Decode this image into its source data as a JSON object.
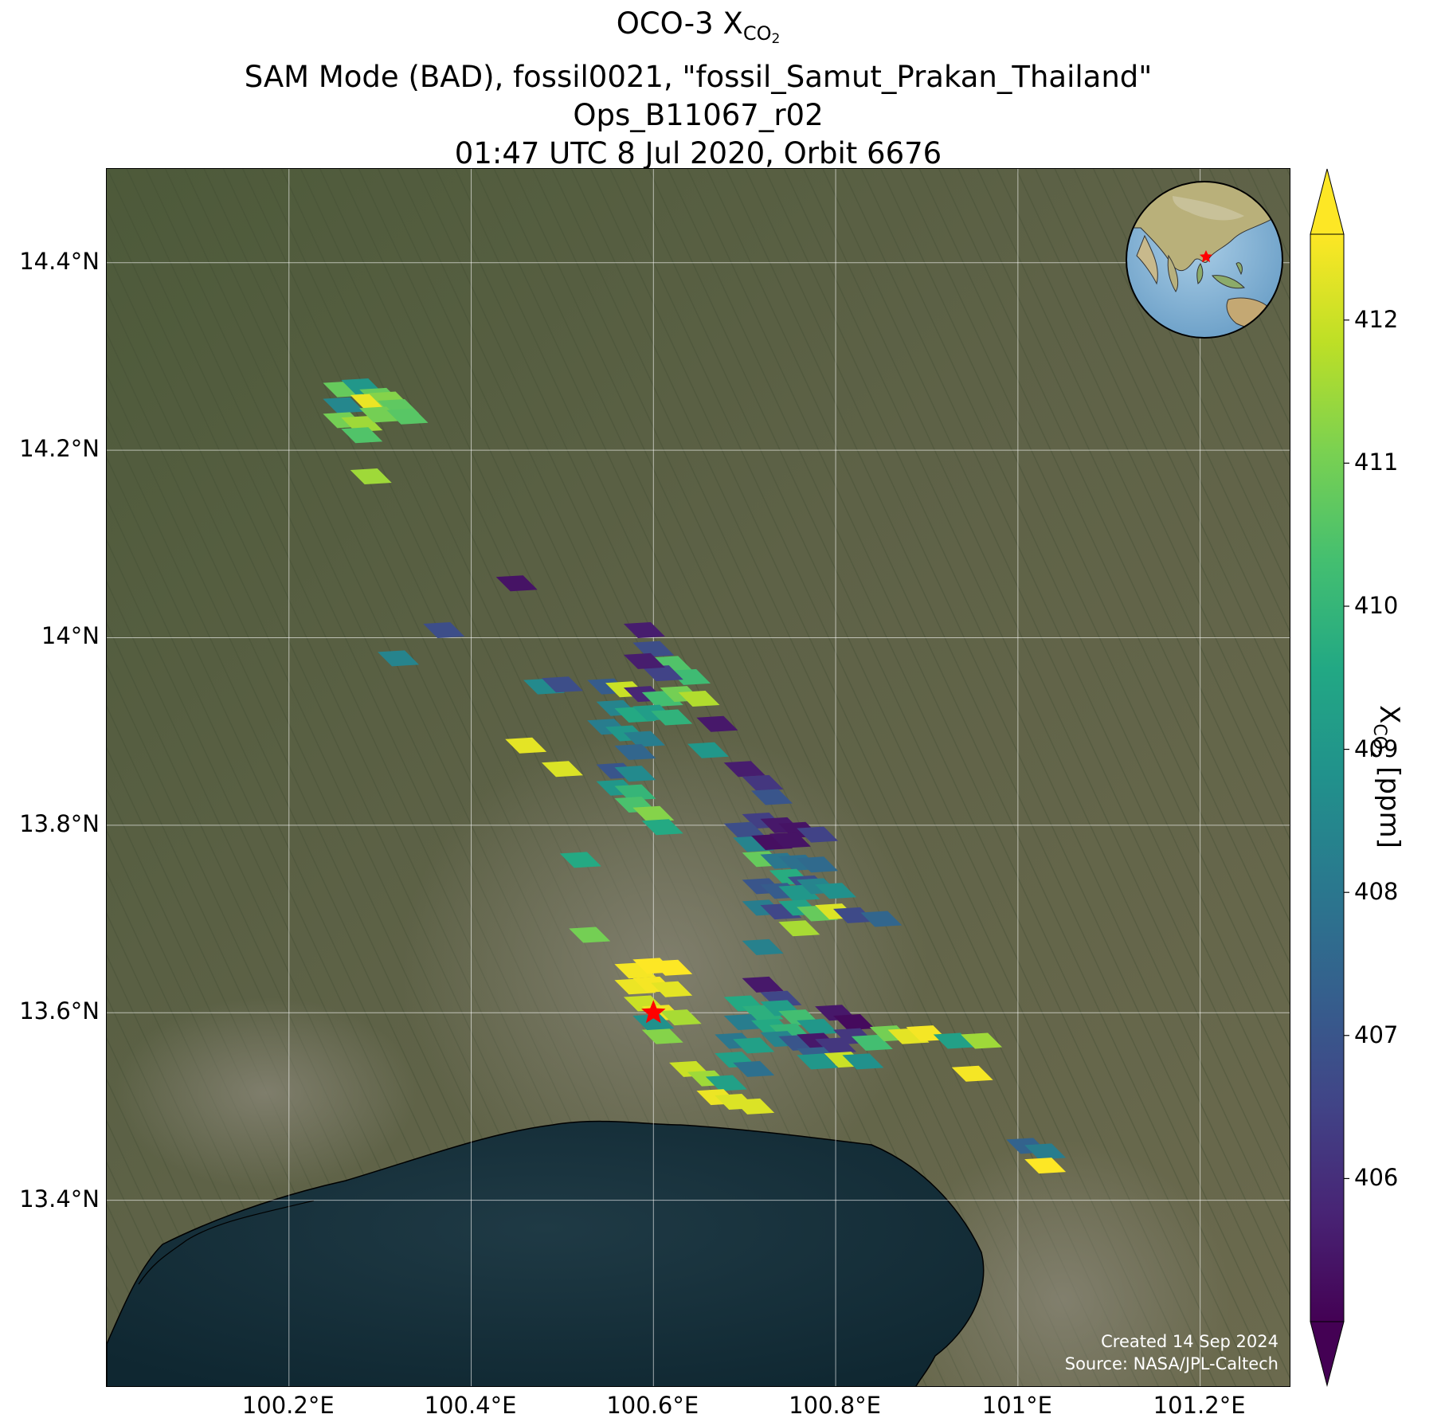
{
  "title": {
    "line1_prefix": "OCO-3 X",
    "line1_sub": "CO",
    "line1_sub2": "2",
    "line2": "SAM Mode (BAD), fossil0021, \"fossil_Samut_Prakan_Thailand\"",
    "line3": "Ops_B11067_r02",
    "line4": "01:47 UTC 8 Jul 2020, Orbit 6676"
  },
  "map": {
    "lon_range": [
      100.0,
      101.3
    ],
    "lat_range": [
      13.2,
      14.5
    ],
    "lat_ticks": [
      "14.4°N",
      "14.2°N",
      "14°N",
      "13.8°N",
      "13.6°N",
      "13.4°N"
    ],
    "lon_ticks": [
      "100.2°E",
      "100.4°E",
      "100.6°E",
      "100.8°E",
      "101°E",
      "101.2°E"
    ],
    "grid": true,
    "basemap": "satellite imagery",
    "target_marker": {
      "lon": 100.6,
      "lat": 13.6,
      "color": "#ff0000",
      "shape": "star"
    },
    "credit_line1": "Created 14 Sep 2024",
    "credit_line2": "Source: NASA/JPL-Caltech",
    "inset": "globe-with-star"
  },
  "colorbar": {
    "label_prefix": "X",
    "label_sub": "CO",
    "label_sub2": "2",
    "label_suffix": " [ppm]",
    "colormap": "viridis",
    "vmin": 405.0,
    "vmax": 412.6,
    "ticks": [
      "406",
      "407",
      "408",
      "409",
      "410",
      "411",
      "412"
    ],
    "extend": "both"
  },
  "chart_data": {
    "type": "scatter",
    "title": "OCO-3 XCO2",
    "xlabel": "",
    "ylabel": "",
    "xlim": [
      100.0,
      101.3
    ],
    "ylim": [
      13.2,
      14.5
    ],
    "value_label": "XCO2 [ppm]",
    "soundings": [
      [
        100.26,
        14.265,
        410.8
      ],
      [
        100.28,
        14.268,
        409.0
      ],
      [
        100.3,
        14.258,
        410.8
      ],
      [
        100.26,
        14.248,
        408.5
      ],
      [
        100.29,
        14.252,
        412.4
      ],
      [
        100.31,
        14.254,
        411.2
      ],
      [
        100.32,
        14.246,
        410.7
      ],
      [
        100.26,
        14.232,
        411.0
      ],
      [
        100.28,
        14.228,
        411.5
      ],
      [
        100.3,
        14.238,
        411.0
      ],
      [
        100.33,
        14.236,
        410.6
      ],
      [
        100.28,
        14.216,
        410.5
      ],
      [
        100.29,
        14.172,
        411.5
      ],
      [
        100.45,
        14.058,
        405.4
      ],
      [
        100.37,
        14.008,
        406.8
      ],
      [
        100.32,
        13.978,
        408.4
      ],
      [
        100.59,
        14.008,
        405.6
      ],
      [
        100.6,
        13.988,
        406.8
      ],
      [
        100.62,
        13.972,
        410.5
      ],
      [
        100.64,
        13.958,
        410.2
      ],
      [
        100.61,
        13.962,
        406.5
      ],
      [
        100.59,
        13.975,
        405.6
      ],
      [
        100.48,
        13.948,
        408.6
      ],
      [
        100.5,
        13.95,
        406.8
      ],
      [
        100.55,
        13.948,
        407.2
      ],
      [
        100.57,
        13.945,
        412.0
      ],
      [
        100.59,
        13.94,
        405.8
      ],
      [
        100.61,
        13.935,
        410.3
      ],
      [
        100.63,
        13.94,
        411.0
      ],
      [
        100.65,
        13.935,
        411.7
      ],
      [
        100.56,
        13.925,
        408.4
      ],
      [
        100.58,
        13.918,
        409.6
      ],
      [
        100.6,
        13.92,
        409.2
      ],
      [
        100.62,
        13.915,
        409.9
      ],
      [
        100.55,
        13.905,
        408.2
      ],
      [
        100.57,
        13.898,
        409.0
      ],
      [
        100.59,
        13.892,
        408.2
      ],
      [
        100.67,
        13.908,
        405.5
      ],
      [
        100.58,
        13.878,
        407.5
      ],
      [
        100.66,
        13.88,
        409.0
      ],
      [
        100.46,
        13.885,
        412.3
      ],
      [
        100.5,
        13.86,
        412.2
      ],
      [
        100.56,
        13.858,
        407.0
      ],
      [
        100.58,
        13.855,
        408.6
      ],
      [
        100.56,
        13.84,
        409.0
      ],
      [
        100.58,
        13.835,
        410.0
      ],
      [
        100.58,
        13.822,
        410.4
      ],
      [
        100.6,
        13.812,
        411.2
      ],
      [
        100.61,
        13.798,
        409.6
      ],
      [
        100.7,
        13.86,
        405.6
      ],
      [
        100.72,
        13.845,
        406.2
      ],
      [
        100.73,
        13.83,
        407.0
      ],
      [
        100.72,
        13.805,
        406.4
      ],
      [
        100.74,
        13.8,
        405.5
      ],
      [
        100.76,
        13.795,
        405.4
      ],
      [
        100.78,
        13.79,
        406.5
      ],
      [
        100.7,
        13.795,
        406.8
      ],
      [
        100.71,
        13.78,
        408.4
      ],
      [
        100.73,
        13.782,
        405.3
      ],
      [
        100.75,
        13.784,
        405.4
      ],
      [
        100.72,
        13.764,
        410.8
      ],
      [
        100.74,
        13.762,
        408.0
      ],
      [
        100.76,
        13.76,
        407.8
      ],
      [
        100.78,
        13.758,
        407.6
      ],
      [
        100.75,
        13.745,
        409.7
      ],
      [
        100.77,
        13.738,
        406.8
      ],
      [
        100.72,
        13.735,
        407.0
      ],
      [
        100.74,
        13.73,
        407.2
      ],
      [
        100.76,
        13.728,
        409.0
      ],
      [
        100.78,
        13.735,
        408.4
      ],
      [
        100.8,
        13.73,
        408.8
      ],
      [
        100.72,
        13.712,
        408.2
      ],
      [
        100.74,
        13.708,
        406.6
      ],
      [
        100.76,
        13.712,
        409.3
      ],
      [
        100.78,
        13.706,
        410.8
      ],
      [
        100.8,
        13.708,
        412.2
      ],
      [
        100.82,
        13.704,
        406.7
      ],
      [
        100.85,
        13.7,
        407.5
      ],
      [
        100.76,
        13.69,
        411.6
      ],
      [
        100.72,
        13.67,
        408.3
      ],
      [
        100.52,
        13.763,
        409.6
      ],
      [
        100.53,
        13.683,
        411.0
      ],
      [
        100.58,
        13.645,
        412.5
      ],
      [
        100.6,
        13.65,
        412.6
      ],
      [
        100.62,
        13.648,
        412.6
      ],
      [
        100.58,
        13.628,
        412.4
      ],
      [
        100.6,
        13.63,
        412.5
      ],
      [
        100.62,
        13.625,
        412.3
      ],
      [
        100.59,
        13.61,
        412.0
      ],
      [
        100.61,
        13.6,
        412.4
      ],
      [
        100.63,
        13.595,
        411.6
      ],
      [
        100.61,
        13.575,
        411.2
      ],
      [
        100.6,
        13.59,
        408.8
      ],
      [
        100.72,
        13.63,
        405.5
      ],
      [
        100.74,
        13.615,
        406.6
      ],
      [
        100.7,
        13.61,
        409.6
      ],
      [
        100.72,
        13.6,
        409.8
      ],
      [
        100.74,
        13.605,
        409.2
      ],
      [
        100.76,
        13.595,
        410.3
      ],
      [
        100.7,
        13.59,
        408.2
      ],
      [
        100.73,
        13.585,
        409.6
      ],
      [
        100.75,
        13.58,
        410.0
      ],
      [
        100.78,
        13.585,
        409.0
      ],
      [
        100.69,
        13.57,
        408.0
      ],
      [
        100.71,
        13.565,
        409.3
      ],
      [
        100.74,
        13.572,
        408.4
      ],
      [
        100.76,
        13.568,
        407.0
      ],
      [
        100.78,
        13.57,
        405.5
      ],
      [
        100.8,
        13.565,
        406.2
      ],
      [
        100.78,
        13.555,
        407.3
      ],
      [
        100.69,
        13.55,
        409.3
      ],
      [
        100.71,
        13.54,
        407.8
      ],
      [
        100.8,
        13.6,
        405.5
      ],
      [
        100.82,
        13.59,
        405.2
      ],
      [
        100.82,
        13.575,
        406.2
      ],
      [
        100.84,
        13.568,
        410.3
      ],
      [
        100.86,
        13.578,
        411.0
      ],
      [
        100.88,
        13.575,
        412.3
      ],
      [
        100.9,
        13.578,
        412.5
      ],
      [
        100.93,
        13.57,
        409.3
      ],
      [
        100.96,
        13.57,
        411.5
      ],
      [
        100.81,
        13.55,
        412.0
      ],
      [
        100.83,
        13.548,
        408.8
      ],
      [
        100.78,
        13.548,
        409.0
      ],
      [
        100.64,
        13.54,
        412.0
      ],
      [
        100.66,
        13.53,
        411.5
      ],
      [
        100.68,
        13.525,
        409.3
      ],
      [
        100.67,
        13.51,
        412.4
      ],
      [
        100.69,
        13.505,
        412.2
      ],
      [
        100.71,
        13.5,
        412.2
      ],
      [
        100.95,
        13.535,
        412.5
      ],
      [
        101.01,
        13.458,
        407.4
      ],
      [
        101.03,
        13.452,
        408.2
      ],
      [
        101.03,
        13.437,
        412.6
      ]
    ]
  }
}
